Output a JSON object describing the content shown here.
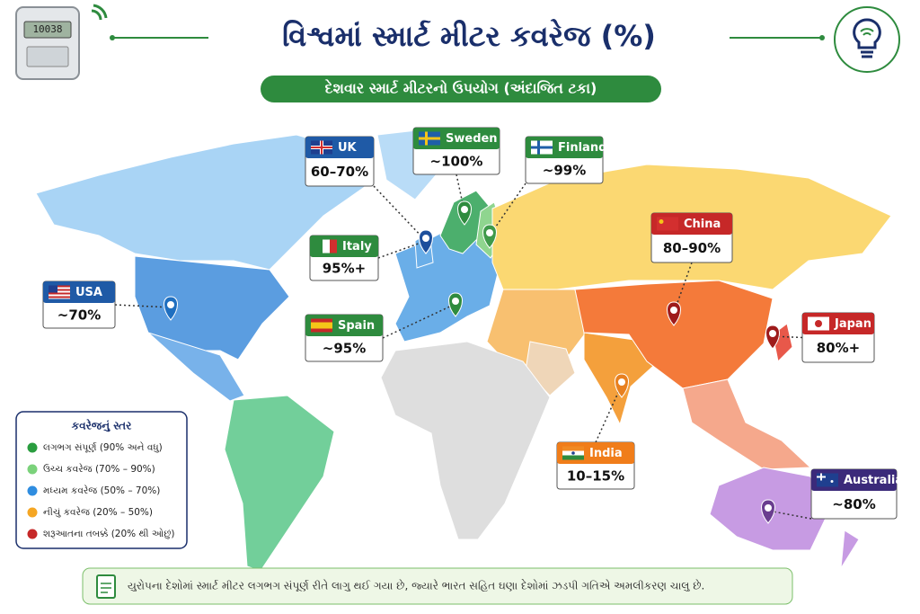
{
  "header": {
    "meter_display": "10038",
    "title": "વિશ્વમાં સ્માર્ટ મીટર કવરેજ (%)",
    "subtitle": "દેશવાર સ્માર્ટ મીટરનો ઉપયોગ (અંદાજિત ટકા)"
  },
  "callouts": [
    {
      "name": "UK",
      "value": "60–70%",
      "color": "#1f5aa6",
      "pin_color": "#1d4f9c"
    },
    {
      "name": "Sweden",
      "value": "~100%",
      "color": "#2e8b3e",
      "pin_color": "#2e8b3e"
    },
    {
      "name": "Finland",
      "value": "~99%",
      "color": "#2e8b3e",
      "pin_color": "#3f9a4a"
    },
    {
      "name": "Italy",
      "value": "95%+",
      "color": "#2e8b3e",
      "pin_color": "#1d4f9c"
    },
    {
      "name": "USA",
      "value": "~70%",
      "color": "#1f5aa6",
      "pin_color": "#1f6fc0"
    },
    {
      "name": "Spain",
      "value": "~95%",
      "color": "#2e8b3e",
      "pin_color": "#2e8b3e"
    },
    {
      "name": "China",
      "value": "80–90%",
      "color": "#c62828",
      "pin_color": "#9e1b1b"
    },
    {
      "name": "Japan",
      "value": "80%+",
      "color": "#c62828",
      "pin_color": "#9e1b1b"
    },
    {
      "name": "India",
      "value": "10–15%",
      "color": "#f07d1a",
      "pin_color": "#e8801f"
    },
    {
      "name": "Australia",
      "value": "~80%",
      "color": "#3b2a7a",
      "pin_color": "#6a3d8f"
    }
  ],
  "legend": {
    "title": "કવરેજનું સ્તર",
    "items": [
      {
        "label": "લગભગ સંપૂર્ણ (90% અને વધુ)",
        "color": "#2a9d3f"
      },
      {
        "label": "ઉચ્ચ કવરેજ (70% – 90%)",
        "color": "#7bd27b"
      },
      {
        "label": "મધ્યમ કવરેજ (50% – 70%)",
        "color": "#2f8de0"
      },
      {
        "label": "નીચું કવરેજ (20% – 50%)",
        "color": "#f5a623"
      },
      {
        "label": "શરૂઆતના તબક્કે (20% થી ઓછું)",
        "color": "#c62828"
      }
    ]
  },
  "footer": "યુરોપના દેશોમાં સ્માર્ટ મીટર લગભગ સંપૂર્ણ રીતે લાગુ થઈ ગયા છે, જ્યારે ભારત સહિત ઘણા દેશોમાં ઝડપી ગતિએ અમલીકરણ ચાલુ છે."
}
